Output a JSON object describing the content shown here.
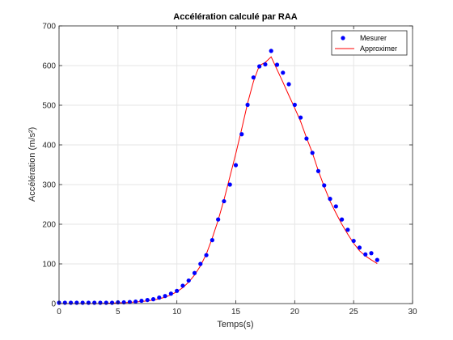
{
  "chart_data": {
    "type": "scatter",
    "title": "Accélération calculé par RAA",
    "xlabel": "Temps(s)",
    "ylabel": "Accélération (m/s²)",
    "xlim": [
      0,
      30
    ],
    "ylim": [
      0,
      700
    ],
    "xticks": [
      0,
      5,
      10,
      15,
      20,
      25,
      30
    ],
    "yticks": [
      0,
      100,
      200,
      300,
      400,
      500,
      600,
      700
    ],
    "grid": true,
    "legend_position": "top-right",
    "series": [
      {
        "name": "Mesurer",
        "kind": "markers",
        "color": "#0000ff",
        "x": [
          0,
          0.5,
          1,
          1.5,
          2,
          2.5,
          3,
          3.5,
          4,
          4.5,
          5,
          5.5,
          6,
          6.5,
          7,
          7.5,
          8,
          8.5,
          9,
          9.5,
          10,
          10.5,
          11,
          11.5,
          12,
          12.5,
          13,
          13.5,
          14,
          14.5,
          15,
          15.5,
          16,
          16.5,
          17,
          17.5,
          18,
          18.5,
          19,
          19.5,
          20,
          20.5,
          21,
          21.5,
          22,
          22.5,
          23,
          23.5,
          24,
          24.5,
          25,
          25.5,
          26,
          26.5,
          27
        ],
        "y": [
          2,
          2,
          2,
          2,
          2,
          2,
          2,
          2,
          2,
          2,
          3,
          3,
          4,
          5,
          7,
          9,
          11,
          15,
          19,
          25,
          32,
          45,
          58,
          77,
          100,
          122,
          160,
          212,
          258,
          300,
          349,
          427,
          501,
          570,
          598,
          603,
          637,
          602,
          582,
          553,
          501,
          469,
          416,
          380,
          334,
          298,
          264,
          245,
          212,
          186,
          158,
          141,
          124,
          127,
          110
        ]
      },
      {
        "name": "Approximer",
        "kind": "line",
        "color": "#ff0000",
        "x": [
          0,
          0.5,
          1,
          1.5,
          2,
          2.5,
          3,
          3.5,
          4,
          4.5,
          5,
          5.5,
          6,
          6.5,
          7,
          7.5,
          8,
          8.5,
          9,
          9.5,
          10,
          10.5,
          11,
          11.5,
          12,
          12.5,
          13,
          13.5,
          14,
          14.5,
          15,
          15.5,
          16,
          16.5,
          17,
          17.5,
          18,
          18.5,
          19,
          19.5,
          20,
          20.5,
          21,
          21.5,
          22,
          22.5,
          23,
          23.5,
          24,
          24.5,
          25,
          25.5,
          26,
          26.5,
          27
        ],
        "y": [
          0,
          0,
          0,
          0,
          0,
          0,
          0,
          0,
          1,
          1,
          2,
          2,
          3,
          4,
          5,
          7,
          9,
          12,
          16,
          22,
          30,
          40,
          54,
          72,
          95,
          125,
          165,
          210,
          262,
          320,
          378,
          440,
          505,
          560,
          600,
          608,
          622,
          590,
          558,
          525,
          493,
          459,
          418,
          380,
          335,
          295,
          258,
          228,
          200,
          175,
          152,
          133,
          120,
          110,
          101
        ]
      }
    ]
  }
}
